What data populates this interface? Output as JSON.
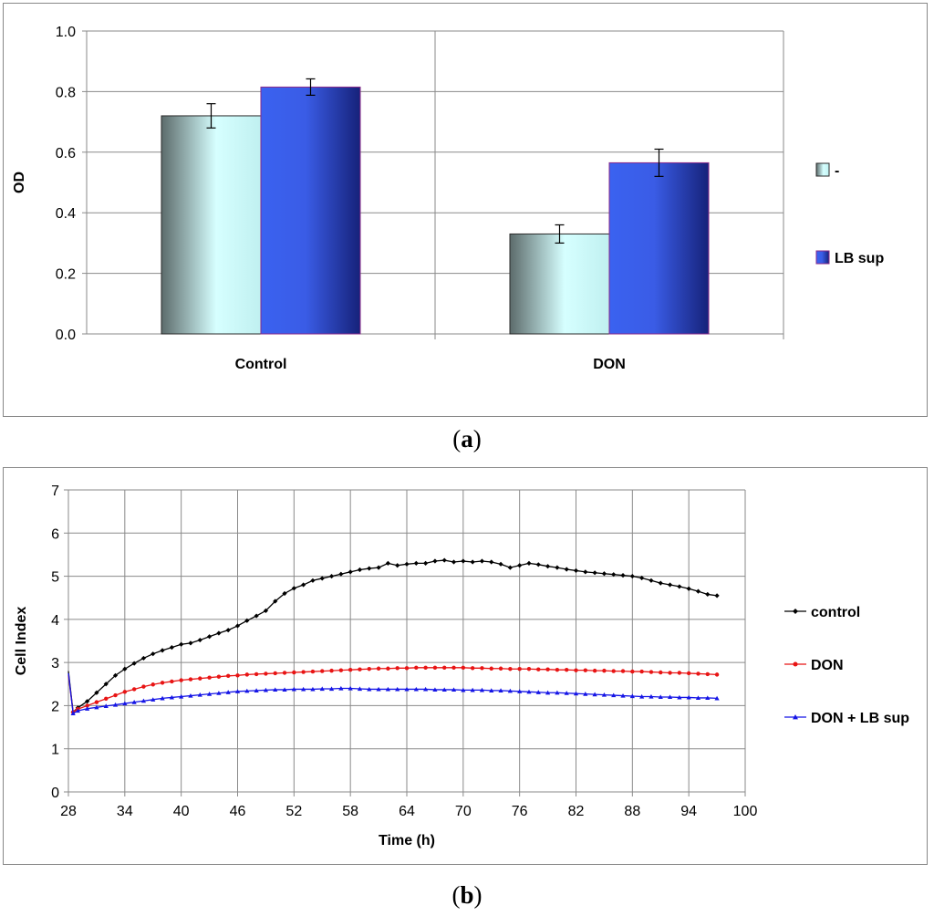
{
  "captions": {
    "a": "a",
    "b": "b"
  },
  "chart_data": [
    {
      "type": "bar",
      "title": "",
      "xlabel": "",
      "ylabel": "OD",
      "ylim": [
        0,
        1.0
      ],
      "yticks": [
        "0.0",
        "0.2",
        "0.4",
        "0.6",
        "0.8",
        "1.0"
      ],
      "categories": [
        "Control",
        "DON"
      ],
      "series": [
        {
          "name": "-",
          "values": [
            0.72,
            0.33
          ],
          "errors": [
            0.04,
            0.03
          ],
          "color": "#c8f4f4"
        },
        {
          "name": "LB sup",
          "values": [
            0.815,
            0.565
          ],
          "errors": [
            0.027,
            0.045
          ],
          "color": "#3b5ee8"
        }
      ],
      "grid": true,
      "legend": "right"
    },
    {
      "type": "line",
      "title": "",
      "xlabel": "Time (h)",
      "ylabel": "Cell Index",
      "xlim": [
        28,
        100
      ],
      "ylim": [
        0,
        7
      ],
      "xticks": [
        "28",
        "34",
        "40",
        "46",
        "52",
        "58",
        "64",
        "70",
        "76",
        "82",
        "88",
        "94",
        "100"
      ],
      "yticks": [
        "0",
        "1",
        "2",
        "3",
        "4",
        "5",
        "6",
        "7"
      ],
      "grid": true,
      "legend": "right",
      "series": [
        {
          "name": "control",
          "color": "#000000",
          "marker": "diamond",
          "x": [
            28,
            28.5,
            29,
            30,
            31,
            32,
            33,
            34,
            35,
            36,
            37,
            38,
            39,
            40,
            41,
            42,
            43,
            44,
            45,
            46,
            47,
            48,
            49,
            50,
            51,
            52,
            53,
            54,
            55,
            56,
            57,
            58,
            59,
            60,
            61,
            62,
            63,
            64,
            65,
            66,
            67,
            68,
            69,
            70,
            71,
            72,
            73,
            74,
            75,
            76,
            77,
            78,
            79,
            80,
            81,
            82,
            83,
            84,
            85,
            86,
            87,
            88,
            89,
            90,
            91,
            92,
            93,
            94,
            95,
            96,
            97
          ],
          "y": [
            2.8,
            1.85,
            1.95,
            2.1,
            2.3,
            2.5,
            2.7,
            2.85,
            2.98,
            3.1,
            3.2,
            3.28,
            3.35,
            3.42,
            3.45,
            3.52,
            3.6,
            3.68,
            3.75,
            3.85,
            3.97,
            4.08,
            4.2,
            4.42,
            4.6,
            4.72,
            4.8,
            4.9,
            4.95,
            5.0,
            5.05,
            5.1,
            5.15,
            5.18,
            5.2,
            5.3,
            5.25,
            5.28,
            5.3,
            5.3,
            5.35,
            5.37,
            5.33,
            5.35,
            5.33,
            5.35,
            5.33,
            5.28,
            5.2,
            5.25,
            5.3,
            5.27,
            5.23,
            5.2,
            5.16,
            5.13,
            5.1,
            5.08,
            5.06,
            5.04,
            5.02,
            5.0,
            4.96,
            4.9,
            4.84,
            4.8,
            4.76,
            4.71,
            4.65,
            4.58,
            4.55
          ]
        },
        {
          "name": "DON",
          "color": "#e81414",
          "marker": "circle",
          "x": [
            28,
            28.5,
            29,
            30,
            31,
            32,
            33,
            34,
            35,
            36,
            37,
            38,
            39,
            40,
            41,
            42,
            43,
            44,
            45,
            46,
            47,
            48,
            49,
            50,
            51,
            52,
            53,
            54,
            55,
            56,
            57,
            58,
            59,
            60,
            61,
            62,
            63,
            64,
            65,
            66,
            67,
            68,
            69,
            70,
            71,
            72,
            73,
            74,
            75,
            76,
            77,
            78,
            79,
            80,
            81,
            82,
            83,
            84,
            85,
            86,
            87,
            88,
            89,
            90,
            91,
            92,
            93,
            94,
            95,
            96,
            97
          ],
          "y": [
            2.7,
            1.85,
            1.92,
            2.0,
            2.08,
            2.16,
            2.24,
            2.32,
            2.38,
            2.44,
            2.49,
            2.53,
            2.56,
            2.59,
            2.61,
            2.63,
            2.65,
            2.67,
            2.69,
            2.7,
            2.72,
            2.73,
            2.74,
            2.75,
            2.76,
            2.77,
            2.78,
            2.79,
            2.8,
            2.81,
            2.82,
            2.83,
            2.84,
            2.85,
            2.86,
            2.86,
            2.87,
            2.87,
            2.88,
            2.88,
            2.88,
            2.88,
            2.88,
            2.88,
            2.87,
            2.87,
            2.86,
            2.86,
            2.85,
            2.85,
            2.85,
            2.84,
            2.84,
            2.83,
            2.83,
            2.82,
            2.82,
            2.81,
            2.81,
            2.8,
            2.8,
            2.79,
            2.79,
            2.78,
            2.77,
            2.76,
            2.76,
            2.75,
            2.74,
            2.73,
            2.72
          ]
        },
        {
          "name": "DON + LB sup",
          "color": "#1515e6",
          "marker": "triangle",
          "x": [
            28,
            28.5,
            29,
            30,
            31,
            32,
            33,
            34,
            35,
            36,
            37,
            38,
            39,
            40,
            41,
            42,
            43,
            44,
            45,
            46,
            47,
            48,
            49,
            50,
            51,
            52,
            53,
            54,
            55,
            56,
            57,
            58,
            59,
            60,
            61,
            62,
            63,
            64,
            65,
            66,
            67,
            68,
            69,
            70,
            71,
            72,
            73,
            74,
            75,
            76,
            77,
            78,
            79,
            80,
            81,
            82,
            83,
            84,
            85,
            86,
            87,
            88,
            89,
            90,
            91,
            92,
            93,
            94,
            95,
            96,
            97
          ],
          "y": [
            2.75,
            1.82,
            1.88,
            1.93,
            1.96,
            1.99,
            2.02,
            2.05,
            2.08,
            2.11,
            2.14,
            2.17,
            2.19,
            2.21,
            2.23,
            2.25,
            2.27,
            2.29,
            2.31,
            2.33,
            2.34,
            2.35,
            2.36,
            2.37,
            2.37,
            2.38,
            2.38,
            2.38,
            2.39,
            2.39,
            2.4,
            2.4,
            2.39,
            2.38,
            2.38,
            2.38,
            2.38,
            2.38,
            2.38,
            2.38,
            2.37,
            2.37,
            2.37,
            2.36,
            2.36,
            2.36,
            2.35,
            2.35,
            2.34,
            2.33,
            2.32,
            2.31,
            2.3,
            2.3,
            2.29,
            2.28,
            2.27,
            2.26,
            2.25,
            2.24,
            2.23,
            2.22,
            2.21,
            2.21,
            2.2,
            2.2,
            2.19,
            2.19,
            2.18,
            2.18,
            2.17
          ]
        }
      ]
    }
  ]
}
